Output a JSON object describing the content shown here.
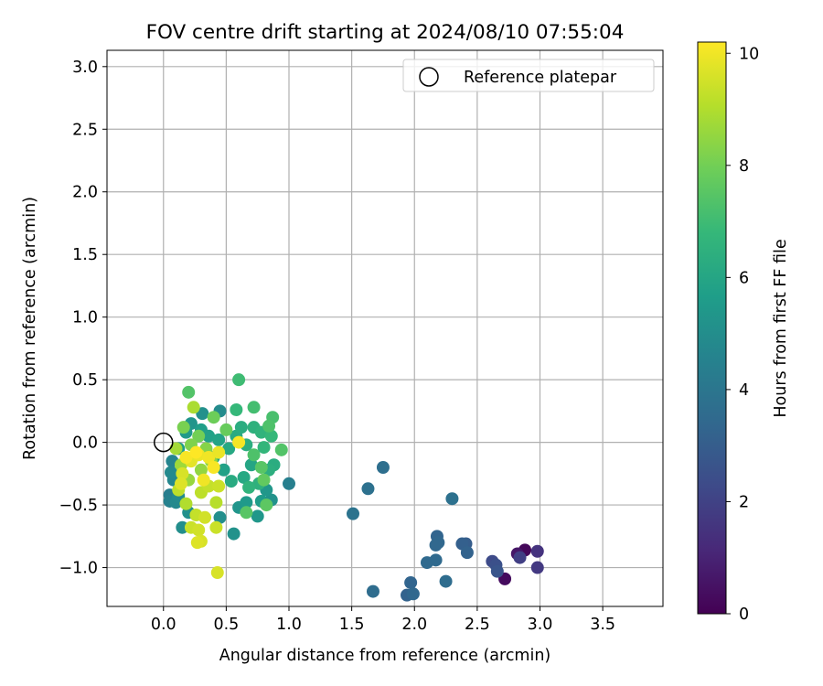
{
  "chart_data": {
    "type": "scatter",
    "title": "FOV centre drift starting at 2024/08/10 07:55:04",
    "xlabel": "Angular distance from reference (arcmin)",
    "ylabel": "Rotation from reference (arcmin)",
    "xlim": [
      -0.45,
      3.98
    ],
    "ylim": [
      -1.31,
      3.13
    ],
    "xticks": [
      0.0,
      0.5,
      1.0,
      1.5,
      2.0,
      2.5,
      3.0,
      3.5
    ],
    "xtick_labels": [
      "0.0",
      "0.5",
      "1.0",
      "1.5",
      "2.0",
      "2.5",
      "3.0",
      "3.5"
    ],
    "yticks": [
      -1.0,
      -0.5,
      0.0,
      0.5,
      1.0,
      1.5,
      2.0,
      2.5,
      3.0
    ],
    "ytick_labels": [
      "−1.0",
      "−0.5",
      "0.0",
      "0.5",
      "1.0",
      "1.5",
      "2.0",
      "2.5",
      "3.0"
    ],
    "grid": true,
    "legend": {
      "placement": "upper right",
      "entries": [
        {
          "label": "Reference platepar",
          "marker": "open-circle",
          "x": 0.0,
          "y": 0.0
        }
      ]
    },
    "colorbar": {
      "label": "Hours from first FF file",
      "range": [
        0,
        10.2
      ],
      "ticks": [
        0,
        2,
        4,
        6,
        8,
        10
      ],
      "tick_labels": [
        "0",
        "2",
        "4",
        "6",
        "8",
        "10"
      ],
      "colormap": "viridis",
      "colormap_stops": [
        "#440154",
        "#482878",
        "#3e4a89",
        "#31688e",
        "#26828e",
        "#1f9e89",
        "#35b779",
        "#6ece58",
        "#b5de2b",
        "#fde725"
      ]
    },
    "points": [
      {
        "x": 2.88,
        "y": -0.86,
        "h": 0.2
      },
      {
        "x": 2.72,
        "y": -1.09,
        "h": 0.3
      },
      {
        "x": 2.82,
        "y": -0.89,
        "h": 0.6
      },
      {
        "x": 2.98,
        "y": -0.87,
        "h": 1.5
      },
      {
        "x": 2.98,
        "y": -1.0,
        "h": 1.7
      },
      {
        "x": 2.84,
        "y": -0.92,
        "h": 1.9
      },
      {
        "x": 2.62,
        "y": -0.95,
        "h": 2.3
      },
      {
        "x": 2.65,
        "y": -0.98,
        "h": 2.5
      },
      {
        "x": 2.66,
        "y": -1.03,
        "h": 2.7
      },
      {
        "x": 2.41,
        "y": -0.81,
        "h": 3.0
      },
      {
        "x": 2.38,
        "y": -0.81,
        "h": 3.1
      },
      {
        "x": 2.42,
        "y": -0.88,
        "h": 3.2
      },
      {
        "x": 2.18,
        "y": -0.75,
        "h": 3.3
      },
      {
        "x": 2.19,
        "y": -0.8,
        "h": 3.4
      },
      {
        "x": 2.17,
        "y": -0.82,
        "h": 3.4
      },
      {
        "x": 2.17,
        "y": -0.94,
        "h": 3.5
      },
      {
        "x": 2.1,
        "y": -0.96,
        "h": 3.5
      },
      {
        "x": 2.25,
        "y": -1.11,
        "h": 3.6
      },
      {
        "x": 1.97,
        "y": -1.12,
        "h": 3.3
      },
      {
        "x": 1.94,
        "y": -1.22,
        "h": 3.2
      },
      {
        "x": 1.99,
        "y": -1.21,
        "h": 3.4
      },
      {
        "x": 1.67,
        "y": -1.19,
        "h": 3.6
      },
      {
        "x": 2.3,
        "y": -0.45,
        "h": 3.8
      },
      {
        "x": 1.75,
        "y": -0.2,
        "h": 3.7
      },
      {
        "x": 1.63,
        "y": -0.37,
        "h": 3.8
      },
      {
        "x": 1.51,
        "y": -0.57,
        "h": 3.9
      },
      {
        "x": 1.0,
        "y": -0.33,
        "h": 4.4
      },
      {
        "x": 0.05,
        "y": -0.42,
        "h": 4.3
      },
      {
        "x": 0.05,
        "y": -0.47,
        "h": 4.5
      },
      {
        "x": 0.07,
        "y": -0.15,
        "h": 4.6
      },
      {
        "x": 0.08,
        "y": -0.3,
        "h": 4.7
      },
      {
        "x": 0.1,
        "y": -0.48,
        "h": 4.8
      },
      {
        "x": 0.12,
        "y": -0.43,
        "h": 4.9
      },
      {
        "x": 0.06,
        "y": -0.24,
        "h": 4.8
      },
      {
        "x": 0.15,
        "y": -0.68,
        "h": 5.0
      },
      {
        "x": 0.2,
        "y": -0.56,
        "h": 5.1
      },
      {
        "x": 0.45,
        "y": -0.6,
        "h": 5.0
      },
      {
        "x": 0.56,
        "y": -0.73,
        "h": 5.2
      },
      {
        "x": 0.6,
        "y": -0.52,
        "h": 5.3
      },
      {
        "x": 0.66,
        "y": -0.48,
        "h": 5.5
      },
      {
        "x": 0.75,
        "y": -0.59,
        "h": 5.4
      },
      {
        "x": 0.78,
        "y": -0.47,
        "h": 5.6
      },
      {
        "x": 0.86,
        "y": -0.46,
        "h": 5.2
      },
      {
        "x": 0.82,
        "y": -0.38,
        "h": 5.4
      },
      {
        "x": 0.45,
        "y": 0.25,
        "h": 4.9
      },
      {
        "x": 0.31,
        "y": 0.23,
        "h": 5.1
      },
      {
        "x": 0.22,
        "y": 0.15,
        "h": 5.3
      },
      {
        "x": 0.18,
        "y": 0.08,
        "h": 5.5
      },
      {
        "x": 0.3,
        "y": 0.1,
        "h": 5.7
      },
      {
        "x": 0.36,
        "y": 0.05,
        "h": 5.8
      },
      {
        "x": 0.12,
        "y": -0.05,
        "h": 5.6
      },
      {
        "x": 0.27,
        "y": -0.1,
        "h": 5.9
      },
      {
        "x": 0.4,
        "y": -0.12,
        "h": 6.0
      },
      {
        "x": 0.52,
        "y": -0.05,
        "h": 6.1
      },
      {
        "x": 0.58,
        "y": 0.05,
        "h": 6.2
      },
      {
        "x": 0.62,
        "y": 0.12,
        "h": 6.3
      },
      {
        "x": 0.66,
        "y": -0.02,
        "h": 6.4
      },
      {
        "x": 0.7,
        "y": -0.18,
        "h": 6.0
      },
      {
        "x": 0.64,
        "y": -0.28,
        "h": 6.1
      },
      {
        "x": 0.54,
        "y": -0.31,
        "h": 6.2
      },
      {
        "x": 0.48,
        "y": -0.22,
        "h": 5.8
      },
      {
        "x": 0.44,
        "y": 0.02,
        "h": 5.9
      },
      {
        "x": 0.72,
        "y": 0.12,
        "h": 6.5
      },
      {
        "x": 0.78,
        "y": 0.08,
        "h": 6.6
      },
      {
        "x": 0.8,
        "y": -0.04,
        "h": 6.7
      },
      {
        "x": 0.86,
        "y": 0.05,
        "h": 6.8
      },
      {
        "x": 0.88,
        "y": -0.18,
        "h": 6.3
      },
      {
        "x": 0.84,
        "y": -0.22,
        "h": 6.4
      },
      {
        "x": 0.76,
        "y": -0.33,
        "h": 6.5
      },
      {
        "x": 0.68,
        "y": -0.36,
        "h": 6.6
      },
      {
        "x": 0.58,
        "y": 0.26,
        "h": 6.8
      },
      {
        "x": 0.6,
        "y": 0.5,
        "h": 7.0
      },
      {
        "x": 0.72,
        "y": 0.28,
        "h": 7.1
      },
      {
        "x": 0.87,
        "y": 0.2,
        "h": 7.2
      },
      {
        "x": 0.84,
        "y": 0.13,
        "h": 7.3
      },
      {
        "x": 0.94,
        "y": -0.06,
        "h": 7.4
      },
      {
        "x": 0.66,
        "y": -0.56,
        "h": 7.5
      },
      {
        "x": 0.82,
        "y": -0.5,
        "h": 7.6
      },
      {
        "x": 0.8,
        "y": -0.3,
        "h": 7.7
      },
      {
        "x": 0.78,
        "y": -0.2,
        "h": 7.5
      },
      {
        "x": 0.72,
        "y": -0.1,
        "h": 7.3
      },
      {
        "x": 0.5,
        "y": 0.1,
        "h": 7.8
      },
      {
        "x": 0.4,
        "y": 0.2,
        "h": 7.9
      },
      {
        "x": 0.2,
        "y": 0.4,
        "h": 7.4
      },
      {
        "x": 0.28,
        "y": 0.05,
        "h": 8.0
      },
      {
        "x": 0.16,
        "y": 0.12,
        "h": 8.1
      },
      {
        "x": 0.22,
        "y": -0.02,
        "h": 8.2
      },
      {
        "x": 0.34,
        "y": -0.05,
        "h": 8.3
      },
      {
        "x": 0.38,
        "y": -0.15,
        "h": 8.4
      },
      {
        "x": 0.3,
        "y": -0.22,
        "h": 8.5
      },
      {
        "x": 0.2,
        "y": -0.3,
        "h": 8.6
      },
      {
        "x": 0.14,
        "y": -0.18,
        "h": 8.7
      },
      {
        "x": 0.1,
        "y": -0.05,
        "h": 8.8
      },
      {
        "x": 0.24,
        "y": 0.28,
        "h": 8.9
      },
      {
        "x": 0.18,
        "y": -0.49,
        "h": 9.0
      },
      {
        "x": 0.42,
        "y": -0.48,
        "h": 9.1
      },
      {
        "x": 0.3,
        "y": -0.4,
        "h": 9.2
      },
      {
        "x": 0.26,
        "y": -0.58,
        "h": 9.3
      },
      {
        "x": 0.22,
        "y": -0.68,
        "h": 9.4
      },
      {
        "x": 0.28,
        "y": -0.7,
        "h": 9.5
      },
      {
        "x": 0.3,
        "y": -0.79,
        "h": 9.6
      },
      {
        "x": 0.27,
        "y": -0.8,
        "h": 9.7
      },
      {
        "x": 0.42,
        "y": -0.68,
        "h": 9.4
      },
      {
        "x": 0.43,
        "y": -1.04,
        "h": 9.6
      },
      {
        "x": 0.33,
        "y": -0.6,
        "h": 9.5
      },
      {
        "x": 0.36,
        "y": -0.35,
        "h": 9.3
      },
      {
        "x": 0.44,
        "y": -0.35,
        "h": 9.4
      },
      {
        "x": 0.12,
        "y": -0.38,
        "h": 9.2
      },
      {
        "x": 0.15,
        "y": -0.25,
        "h": 9.6
      },
      {
        "x": 0.22,
        "y": -0.15,
        "h": 9.8
      },
      {
        "x": 0.28,
        "y": -0.1,
        "h": 9.9
      },
      {
        "x": 0.36,
        "y": -0.12,
        "h": 10.0
      },
      {
        "x": 0.4,
        "y": -0.2,
        "h": 10.1
      },
      {
        "x": 0.32,
        "y": -0.3,
        "h": 10.0
      },
      {
        "x": 0.18,
        "y": -0.12,
        "h": 10.1
      },
      {
        "x": 0.26,
        "y": -0.08,
        "h": 10.2
      },
      {
        "x": 0.44,
        "y": -0.08,
        "h": 9.9
      },
      {
        "x": 0.6,
        "y": 0.0,
        "h": 10.1
      },
      {
        "x": 0.14,
        "y": -0.33,
        "h": 9.7
      }
    ]
  }
}
